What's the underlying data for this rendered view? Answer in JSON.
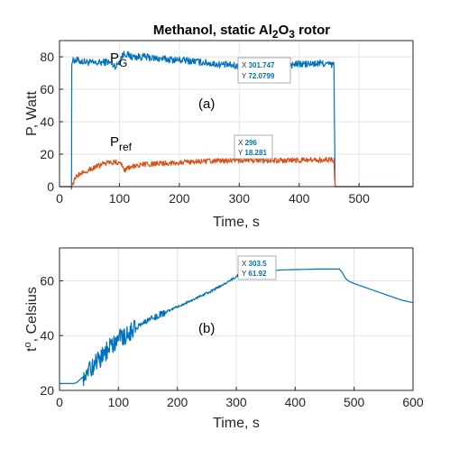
{
  "colors": {
    "blue": "#0072bd",
    "orange": "#d95319",
    "grid": "#e3e3e3",
    "axis": "#262626"
  },
  "chart_data": [
    {
      "type": "line",
      "title": "Methanol, static Al2O3 rotor",
      "title_parts": [
        "Methanol, static Al",
        "2",
        "O",
        "3",
        " rotor"
      ],
      "xlabel": "Time, s",
      "ylabel": "P, Watt",
      "xlim": [
        0,
        590
      ],
      "ylim": [
        0,
        90
      ],
      "xticks": [
        "0",
        "100",
        "200",
        "300",
        "400",
        "500"
      ],
      "yticks": [
        "0",
        "20",
        "40",
        "60",
        "80"
      ],
      "grid": true,
      "panel_label": "(a)",
      "series": [
        {
          "name": "P_G",
          "label_main": "P",
          "label_sub": "G",
          "color": "#0072bd",
          "x": [
            0,
            20,
            20.5,
            25,
            40,
            60,
            80,
            95,
            105,
            110,
            120,
            140,
            160,
            180,
            200,
            220,
            240,
            260,
            280,
            300,
            320,
            340,
            360,
            380,
            400,
            420,
            440,
            455,
            458,
            460,
            520,
            525,
            590
          ],
          "y": [
            0,
            0,
            77,
            78,
            77,
            76,
            77,
            74,
            81,
            82,
            80,
            80,
            79,
            78.5,
            78,
            77.5,
            76.5,
            75.5,
            75,
            74,
            74.5,
            74.5,
            75,
            75,
            75.5,
            75.5,
            76,
            75,
            75,
            0,
            0,
            0,
            0
          ],
          "noise": 2.2
        },
        {
          "name": "P_ref",
          "label_main": "P",
          "label_sub": "ref",
          "color": "#d95319",
          "x": [
            0,
            20,
            22,
            30,
            40,
            60,
            80,
            100,
            110,
            120,
            140,
            160,
            200,
            240,
            280,
            300,
            340,
            380,
            420,
            455,
            458,
            460,
            590
          ],
          "y": [
            0,
            0,
            2,
            7,
            9,
            12,
            15,
            15,
            10,
            12.5,
            13.5,
            14,
            15,
            15.5,
            16,
            16,
            16,
            16.2,
            16.4,
            16.5,
            16.5,
            0,
            0
          ],
          "noise": 1.6
        }
      ],
      "datatips": [
        {
          "series": "P_G",
          "x": 301.747,
          "y": 72.0799,
          "x_text": "301.747",
          "y_text": "72.0799"
        },
        {
          "series": "P_ref",
          "x": 296,
          "y": 18.281,
          "x_text": "296",
          "y_text": "18.281"
        }
      ]
    },
    {
      "type": "line",
      "xlabel": "Time, s",
      "ylabel": "t°, Celsius",
      "ylabel_main": "t",
      "ylabel_sup": "o",
      "ylabel_rest": ", Celsius",
      "xlim": [
        0,
        600
      ],
      "ylim": [
        20,
        72
      ],
      "xticks": [
        "0",
        "100",
        "200",
        "300",
        "400",
        "500",
        "600"
      ],
      "yticks": [
        "20",
        "40",
        "60"
      ],
      "grid": true,
      "panel_label": "(b)",
      "series": [
        {
          "name": "temperature",
          "color": "#0072bd",
          "x": [
            0,
            25,
            30,
            40,
            50,
            60,
            70,
            80,
            90,
            100,
            110,
            120,
            140,
            160,
            180,
            200,
            220,
            240,
            260,
            280,
            300,
            320,
            340,
            360,
            380,
            400,
            420,
            440,
            460,
            475,
            480,
            485,
            490,
            500,
            520,
            540,
            560,
            580,
            600
          ],
          "y": [
            22.5,
            22.5,
            23,
            25,
            27,
            29.5,
            32,
            34.5,
            36.5,
            39,
            40,
            41.5,
            44,
            46.5,
            48.5,
            50.5,
            52.5,
            54.5,
            56.5,
            59,
            61.5,
            63,
            63.5,
            63.7,
            64,
            64.1,
            64.2,
            64.3,
            64.3,
            64.3,
            63,
            61,
            60,
            59,
            57.5,
            56,
            54.5,
            53,
            52
          ]
        }
      ],
      "datatips": [
        {
          "series": "temperature",
          "x": 303.5,
          "y": 61.92,
          "x_text": "303.5",
          "y_text": "61.92"
        }
      ]
    }
  ]
}
